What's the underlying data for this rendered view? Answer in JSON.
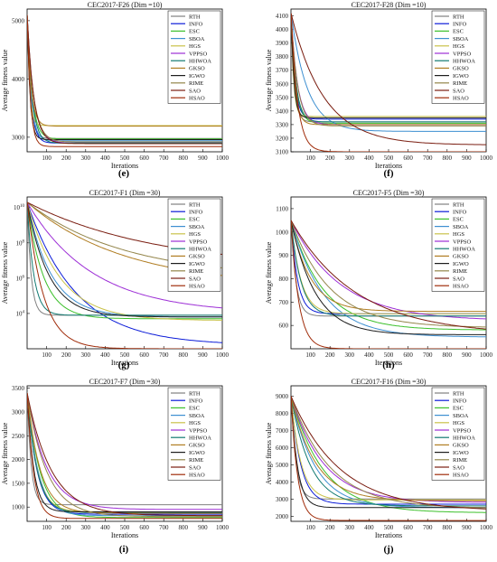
{
  "legend_names": [
    "RTH",
    "INFO",
    "ESC",
    "SBOA",
    "HGS",
    "VPPSO",
    "HHWOA",
    "GKSO",
    "IGWO",
    "RIME",
    "SAO",
    "HSAO"
  ],
  "legend_colors": [
    "#808080",
    "#0b1bd8",
    "#3cc02b",
    "#3d8fd1",
    "#c9c24a",
    "#9d2fd6",
    "#127a72",
    "#b07d22",
    "#1d1d1d",
    "#93854a",
    "#7a1d10",
    "#a02c0a"
  ],
  "chart_data": [
    {
      "type": "line",
      "panel": "e",
      "title": "CEC2017-F26 (Dim =10)",
      "xlabel": "Iterations",
      "ylabel": "Average fitness value",
      "xlim": [
        0,
        1000
      ],
      "ylim": [
        2750,
        5200
      ],
      "yscale": "linear",
      "xticks": [
        100,
        200,
        300,
        400,
        500,
        600,
        700,
        800,
        900,
        1000
      ],
      "yticks": [
        {
          "v": 3000,
          "label": "3000"
        },
        {
          "v": 4000,
          "label": "4000"
        },
        {
          "v": 5000,
          "label": "5000"
        }
      ],
      "series": [
        {
          "name": "RTH",
          "start": 5100,
          "end": 2980,
          "k": 0.06
        },
        {
          "name": "INFO",
          "start": 5100,
          "end": 2900,
          "k": 0.05
        },
        {
          "name": "ESC",
          "start": 5100,
          "end": 2970,
          "k": 0.04
        },
        {
          "name": "SBOA",
          "start": 5100,
          "end": 2940,
          "k": 0.05
        },
        {
          "name": "HGS",
          "start": 5100,
          "end": 3200,
          "k": 0.08
        },
        {
          "name": "VPPSO",
          "start": 5100,
          "end": 2900,
          "k": 0.03
        },
        {
          "name": "HHWOA",
          "start": 5100,
          "end": 2900,
          "k": 0.04
        },
        {
          "name": "GKSO",
          "start": 5100,
          "end": 3190,
          "k": 0.05
        },
        {
          "name": "IGWO",
          "start": 5100,
          "end": 2960,
          "k": 0.07
        },
        {
          "name": "RIME",
          "start": 5100,
          "end": 2920,
          "k": 0.03
        },
        {
          "name": "SAO",
          "start": 5100,
          "end": 2890,
          "k": 0.03
        },
        {
          "name": "HSAO",
          "start": 5100,
          "end": 2840,
          "k": 0.06
        }
      ]
    },
    {
      "type": "line",
      "panel": "f",
      "title": "CEC2017-F28 (Dim =10)",
      "xlabel": "Iterations",
      "ylabel": "Average fitness value",
      "xlim": [
        0,
        1000
      ],
      "ylim": [
        3100,
        4150
      ],
      "yscale": "linear",
      "xticks": [
        100,
        200,
        300,
        400,
        500,
        600,
        700,
        800,
        900,
        1000
      ],
      "yticks": [
        {
          "v": 3100,
          "label": "3100"
        },
        {
          "v": 3200,
          "label": "3200"
        },
        {
          "v": 3300,
          "label": "3300"
        },
        {
          "v": 3400,
          "label": "3400"
        },
        {
          "v": 3500,
          "label": "3500"
        },
        {
          "v": 3600,
          "label": "3600"
        },
        {
          "v": 3700,
          "label": "3700"
        },
        {
          "v": 3800,
          "label": "3800"
        },
        {
          "v": 3900,
          "label": "3900"
        },
        {
          "v": 4000,
          "label": "4000"
        },
        {
          "v": 4100,
          "label": "4100"
        }
      ],
      "series": [
        {
          "name": "RTH",
          "start": 4120,
          "end": 3320,
          "k": 0.06
        },
        {
          "name": "INFO",
          "start": 4120,
          "end": 3340,
          "k": 0.05
        },
        {
          "name": "ESC",
          "start": 4120,
          "end": 3310,
          "k": 0.04
        },
        {
          "name": "SBOA",
          "start": 4120,
          "end": 3250,
          "k": 0.012
        },
        {
          "name": "HGS",
          "start": 4120,
          "end": 3360,
          "k": 0.08
        },
        {
          "name": "VPPSO",
          "start": 4120,
          "end": 3300,
          "k": 0.03
        },
        {
          "name": "HHWOA",
          "start": 4120,
          "end": 3320,
          "k": 0.04
        },
        {
          "name": "GKSO",
          "start": 4120,
          "end": 3300,
          "k": 0.05
        },
        {
          "name": "IGWO",
          "start": 4120,
          "end": 3350,
          "k": 0.07
        },
        {
          "name": "RIME",
          "start": 4120,
          "end": 3290,
          "k": 0.03
        },
        {
          "name": "SAO",
          "start": 4120,
          "end": 3150,
          "k": 0.006
        },
        {
          "name": "HSAO",
          "start": 4120,
          "end": 3100,
          "k": 0.03
        }
      ]
    },
    {
      "type": "line",
      "panel": "g",
      "title": "CEC2017-F1 (Dim =30)",
      "xlabel": "Iterations",
      "ylabel": "Average fitness value",
      "xlim": [
        0,
        1000
      ],
      "ylim": [
        2,
        10.6
      ],
      "yscale": "log",
      "xticks": [
        100,
        200,
        300,
        400,
        500,
        600,
        700,
        800,
        900,
        1000
      ],
      "yticks": [
        {
          "v": 4,
          "label": "10^4"
        },
        {
          "v": 6,
          "label": "10^6"
        },
        {
          "v": 8,
          "label": "10^8"
        },
        {
          "v": 10,
          "label": "10^10"
        }
      ],
      "series": [
        {
          "name": "RTH",
          "start": 10.3,
          "end": 3.9,
          "k": 0.05
        },
        {
          "name": "INFO",
          "start": 10.3,
          "end": 2.2,
          "k": 0.004
        },
        {
          "name": "ESC",
          "start": 10.3,
          "end": 3.7,
          "k": 0.012
        },
        {
          "name": "SBOA",
          "start": 10.3,
          "end": 3.8,
          "k": 0.008
        },
        {
          "name": "HGS",
          "start": 10.3,
          "end": 3.6,
          "k": 0.006
        },
        {
          "name": "VPPSO",
          "start": 10.3,
          "end": 4.0,
          "k": 0.003
        },
        {
          "name": "HHWOA",
          "start": 10.3,
          "end": 3.9,
          "k": 0.03
        },
        {
          "name": "GKSO",
          "start": 10.3,
          "end": 5.5,
          "k": 0.002
        },
        {
          "name": "IGWO",
          "start": 10.3,
          "end": 3.8,
          "k": 0.009
        },
        {
          "name": "RIME",
          "start": 10.3,
          "end": 6.0,
          "k": 0.002
        },
        {
          "name": "SAO",
          "start": 10.3,
          "end": 6.5,
          "k": 0.0015
        },
        {
          "name": "HSAO",
          "start": 10.3,
          "end": 2.0,
          "k": 0.012
        }
      ]
    },
    {
      "type": "line",
      "panel": "h",
      "title": "CEC2017-F5 (Dim =30)",
      "xlabel": "Iterations",
      "ylabel": "Average fitness value",
      "xlim": [
        0,
        1000
      ],
      "ylim": [
        500,
        1150
      ],
      "yscale": "linear",
      "xticks": [
        100,
        200,
        300,
        400,
        500,
        600,
        700,
        800,
        900,
        1000
      ],
      "yticks": [
        {
          "v": 600,
          "label": "600"
        },
        {
          "v": 700,
          "label": "700"
        },
        {
          "v": 800,
          "label": "800"
        },
        {
          "v": 900,
          "label": "900"
        },
        {
          "v": 1000,
          "label": "1000"
        },
        {
          "v": 1100,
          "label": "1100"
        }
      ],
      "series": [
        {
          "name": "RTH",
          "start": 1050,
          "end": 640,
          "k": 0.04
        },
        {
          "name": "INFO",
          "start": 1050,
          "end": 650,
          "k": 0.03
        },
        {
          "name": "ESC",
          "start": 1050,
          "end": 580,
          "k": 0.006
        },
        {
          "name": "SBOA",
          "start": 1050,
          "end": 550,
          "k": 0.006
        },
        {
          "name": "HGS",
          "start": 1050,
          "end": 650,
          "k": 0.02
        },
        {
          "name": "VPPSO",
          "start": 1050,
          "end": 620,
          "k": 0.004
        },
        {
          "name": "HHWOA",
          "start": 1050,
          "end": 640,
          "k": 0.02
        },
        {
          "name": "GKSO",
          "start": 1050,
          "end": 660,
          "k": 0.01
        },
        {
          "name": "IGWO",
          "start": 1050,
          "end": 560,
          "k": 0.008
        },
        {
          "name": "RIME",
          "start": 1050,
          "end": 590,
          "k": 0.005
        },
        {
          "name": "SAO",
          "start": 1050,
          "end": 560,
          "k": 0.003
        },
        {
          "name": "HSAO",
          "start": 1050,
          "end": 500,
          "k": 0.025
        }
      ]
    },
    {
      "type": "line",
      "panel": "i",
      "title": "CEC2017-F7 (Dim =30)",
      "xlabel": "Iterations",
      "ylabel": "Average fitness value",
      "xlim": [
        0,
        1000
      ],
      "ylim": [
        700,
        3550
      ],
      "yscale": "linear",
      "xticks": [
        100,
        200,
        300,
        400,
        500,
        600,
        700,
        800,
        900,
        1000
      ],
      "yticks": [
        {
          "v": 1000,
          "label": "1000"
        },
        {
          "v": 1500,
          "label": "1500"
        },
        {
          "v": 2000,
          "label": "2000"
        },
        {
          "v": 2500,
          "label": "2500"
        },
        {
          "v": 3000,
          "label": "3000"
        },
        {
          "v": 3500,
          "label": "3500"
        }
      ],
      "series": [
        {
          "name": "RTH",
          "start": 3400,
          "end": 1050,
          "k": 0.05
        },
        {
          "name": "INFO",
          "start": 3400,
          "end": 850,
          "k": 0.02
        },
        {
          "name": "ESC",
          "start": 3400,
          "end": 780,
          "k": 0.015
        },
        {
          "name": "SBOA",
          "start": 3400,
          "end": 820,
          "k": 0.018
        },
        {
          "name": "HGS",
          "start": 3400,
          "end": 900,
          "k": 0.02
        },
        {
          "name": "VPPSO",
          "start": 3400,
          "end": 950,
          "k": 0.01
        },
        {
          "name": "HHWOA",
          "start": 3400,
          "end": 880,
          "k": 0.02
        },
        {
          "name": "GKSO",
          "start": 3400,
          "end": 870,
          "k": 0.015
        },
        {
          "name": "IGWO",
          "start": 3400,
          "end": 900,
          "k": 0.03
        },
        {
          "name": "RIME",
          "start": 3400,
          "end": 800,
          "k": 0.01
        },
        {
          "name": "SAO",
          "start": 3400,
          "end": 820,
          "k": 0.008
        },
        {
          "name": "HSAO",
          "start": 3400,
          "end": 760,
          "k": 0.03
        }
      ]
    },
    {
      "type": "line",
      "panel": "j",
      "title": "CEC2017-F16 (Dim =30)",
      "xlabel": "Iterations",
      "ylabel": "Average fitness value",
      "xlim": [
        0,
        1000
      ],
      "ylim": [
        1700,
        9600
      ],
      "yscale": "linear",
      "xticks": [
        100,
        200,
        300,
        400,
        500,
        600,
        700,
        800,
        900,
        1000
      ],
      "yticks": [
        {
          "v": 2000,
          "label": "2000"
        },
        {
          "v": 3000,
          "label": "3000"
        },
        {
          "v": 4000,
          "label": "4000"
        },
        {
          "v": 5000,
          "label": "5000"
        },
        {
          "v": 6000,
          "label": "6000"
        },
        {
          "v": 7000,
          "label": "7000"
        },
        {
          "v": 8000,
          "label": "8000"
        },
        {
          "v": 9000,
          "label": "9000"
        }
      ],
      "series": [
        {
          "name": "RTH",
          "start": 9000,
          "end": 3000,
          "k": 0.04
        },
        {
          "name": "INFO",
          "start": 9000,
          "end": 2700,
          "k": 0.02
        },
        {
          "name": "ESC",
          "start": 9000,
          "end": 2200,
          "k": 0.006
        },
        {
          "name": "SBOA",
          "start": 9000,
          "end": 2500,
          "k": 0.008
        },
        {
          "name": "HGS",
          "start": 9000,
          "end": 2950,
          "k": 0.02
        },
        {
          "name": "VPPSO",
          "start": 9000,
          "end": 2800,
          "k": 0.006
        },
        {
          "name": "HHWOA",
          "start": 9000,
          "end": 2600,
          "k": 0.01
        },
        {
          "name": "GKSO",
          "start": 9000,
          "end": 2900,
          "k": 0.008
        },
        {
          "name": "IGWO",
          "start": 9000,
          "end": 2500,
          "k": 0.03
        },
        {
          "name": "RIME",
          "start": 9000,
          "end": 2450,
          "k": 0.005
        },
        {
          "name": "SAO",
          "start": 9000,
          "end": 2300,
          "k": 0.004
        },
        {
          "name": "HSAO",
          "start": 9000,
          "end": 1750,
          "k": 0.03
        }
      ]
    }
  ]
}
